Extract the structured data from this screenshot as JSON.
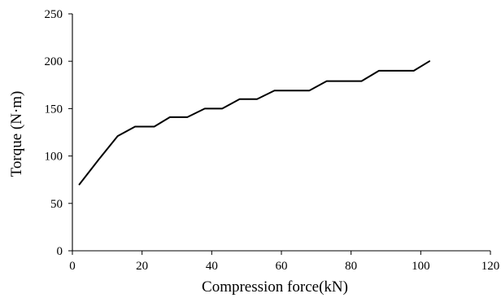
{
  "chart_data": {
    "type": "line",
    "title": "",
    "xlabel": "Compression force(kN)",
    "ylabel": "Torque (N·m)",
    "xlim": [
      0,
      120
    ],
    "ylim": [
      0,
      250
    ],
    "xticks": [
      0,
      20,
      40,
      60,
      80,
      100,
      120
    ],
    "yticks": [
      0,
      50,
      100,
      150,
      200,
      250
    ],
    "xtick_labels": [
      "0",
      "20",
      "40",
      "60",
      "80",
      "100",
      "120"
    ],
    "ytick_labels": [
      "0",
      "50",
      "100",
      "150",
      "200",
      "250"
    ],
    "grid": false,
    "legend": "none",
    "line_color": "#000000",
    "series": [
      {
        "x": [
          2,
          7.5,
          13,
          18,
          23.5,
          28,
          33,
          38,
          43,
          48,
          53,
          58,
          63,
          68,
          73,
          78,
          83,
          88,
          93,
          98,
          102.5
        ],
        "y": [
          70,
          96,
          121,
          131,
          131,
          141,
          141,
          150,
          150,
          160,
          160,
          169,
          169,
          169,
          179,
          179,
          179,
          190,
          190,
          190,
          200
        ]
      }
    ]
  }
}
